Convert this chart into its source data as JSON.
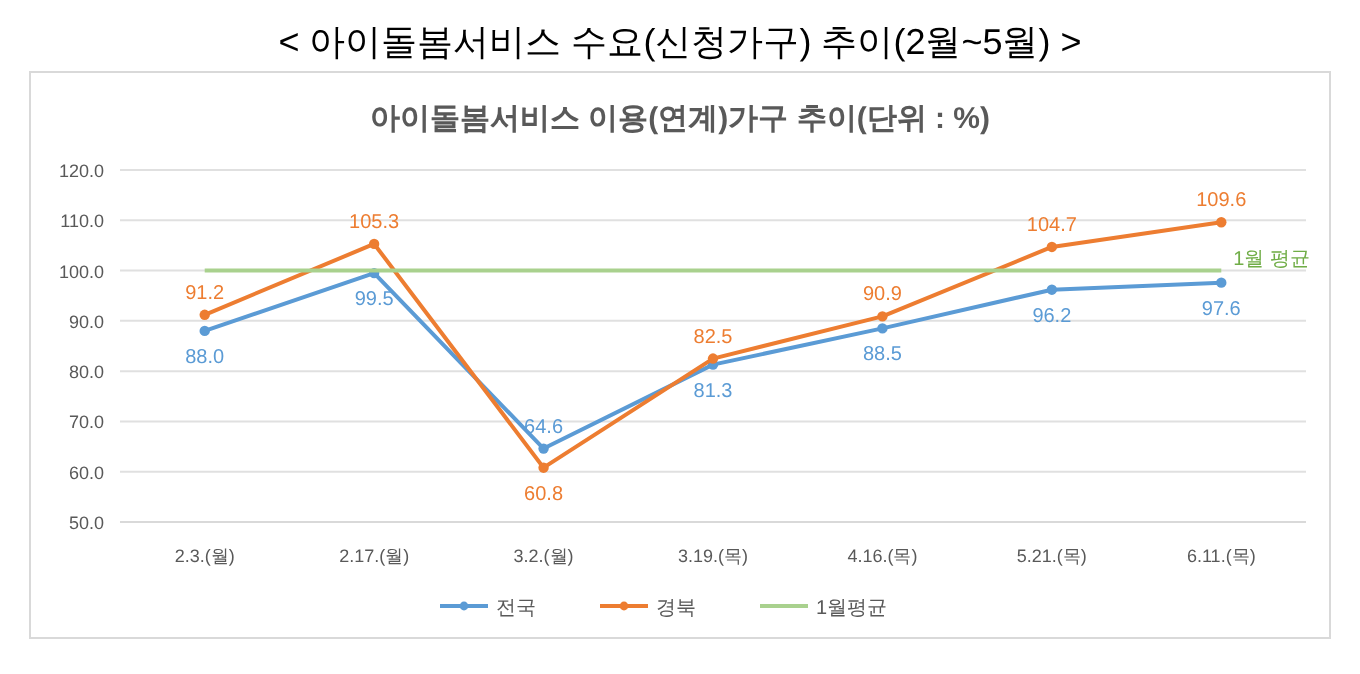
{
  "chart_data": {
    "type": "line",
    "title": "< 아이돌봄서비스  수요(신청가구)  추이(2월~5월)  >",
    "subtitle": "아이돌봄서비스 이용(연계)가구 추이(단위 : %)",
    "categories": [
      "2.3.(월)",
      "2.17.(월)",
      "3.2.(월)",
      "3.19.(목)",
      "4.16.(목)",
      "5.21.(목)",
      "6.11.(목)"
    ],
    "series": [
      {
        "name": "전국",
        "color": "#5b9bd5",
        "marker": "circle",
        "values": [
          88.0,
          99.5,
          64.6,
          81.3,
          88.5,
          96.2,
          97.6
        ],
        "value_labels": [
          "88.0",
          "99.5",
          "64.6",
          "81.3",
          "88.5",
          "96.2",
          "97.6"
        ]
      },
      {
        "name": "경북",
        "color": "#ed7d31",
        "marker": "circle",
        "values": [
          91.2,
          105.3,
          60.8,
          82.5,
          90.9,
          104.7,
          109.6
        ],
        "value_labels": [
          "91.2",
          "105.3",
          "60.8",
          "82.5",
          "90.9",
          "104.7",
          "109.6"
        ]
      },
      {
        "name": "1월평균",
        "color": "#a9d18e",
        "marker": "none",
        "values": [
          100,
          100,
          100,
          100,
          100,
          100,
          100
        ]
      }
    ],
    "annotations": [
      {
        "text": "1월 평균",
        "x": "6.11.(목)",
        "y": 100
      }
    ],
    "ylim": [
      50,
      120
    ],
    "yticks": [
      {
        "value": 50,
        "label": "50.0"
      },
      {
        "value": 60,
        "label": "60.0"
      },
      {
        "value": 70,
        "label": "70.0"
      },
      {
        "value": 80,
        "label": "80.0"
      },
      {
        "value": 90,
        "label": "90.0"
      },
      {
        "value": 100,
        "label": "100.0"
      },
      {
        "value": 110,
        "label": "110.0"
      },
      {
        "value": 120,
        "label": "120.0"
      }
    ],
    "grid": "y",
    "legend": "bottom"
  }
}
